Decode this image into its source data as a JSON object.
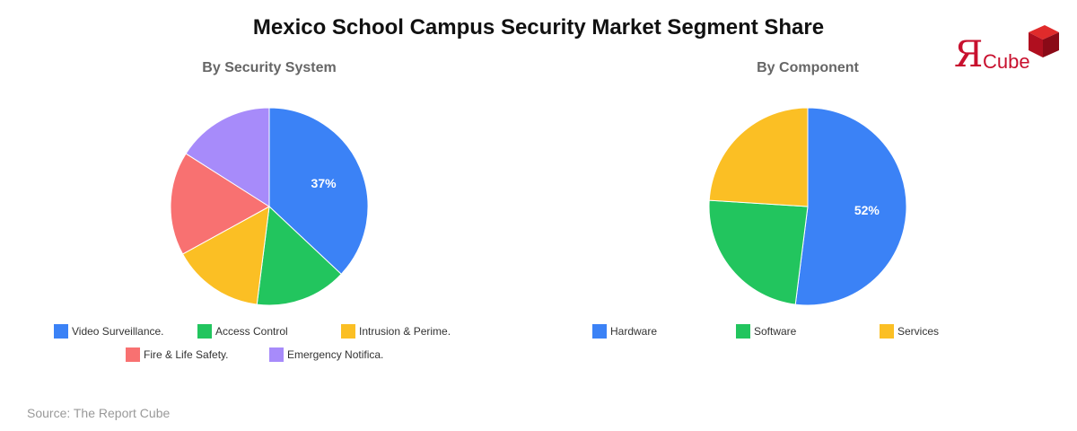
{
  "title": "Mexico School Campus Security Market Segment Share",
  "source": "Source: The Report Cube",
  "logo": {
    "mark": "Я",
    "text": "Cube"
  },
  "chart_data": [
    {
      "type": "pie",
      "title": "By Security System",
      "labels": [
        "Video Surveillance.",
        "Access Control",
        "Intrusion & Perime.",
        "Fire & Life Safety.",
        "Emergency Notifica."
      ],
      "values": [
        37,
        15,
        15,
        17,
        16
      ],
      "colors": [
        "#3b82f6",
        "#22c55e",
        "#fbbf24",
        "#f87171",
        "#a78bfa"
      ],
      "data_labels": [
        "37%",
        "",
        "",
        "",
        ""
      ],
      "legend": "bottom"
    },
    {
      "type": "pie",
      "title": "By Component",
      "labels": [
        "Hardware",
        "Software",
        "Services"
      ],
      "values": [
        52,
        24,
        24
      ],
      "colors": [
        "#3b82f6",
        "#22c55e",
        "#fbbf24"
      ],
      "data_labels": [
        "52%",
        "",
        ""
      ],
      "legend": "bottom"
    }
  ]
}
